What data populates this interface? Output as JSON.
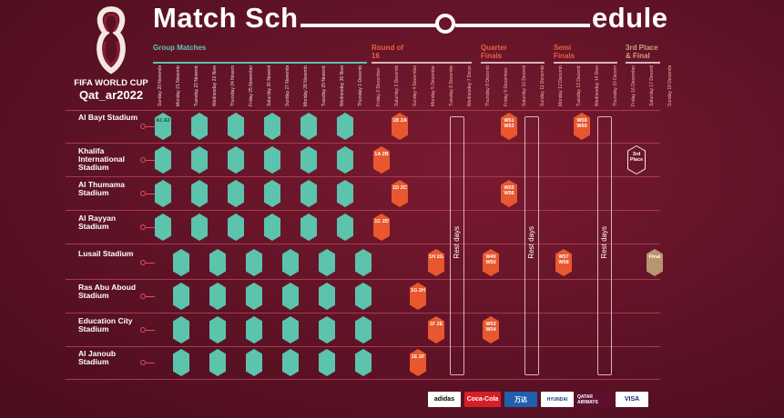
{
  "title": "Match Sch      edule",
  "title_left": "Match Sch",
  "title_right": "edule",
  "logo": {
    "line1": "FIFA WORLD CUP",
    "line2": "Qat_ar2022"
  },
  "phases": [
    {
      "label": "Group Matches",
      "type": "group"
    },
    {
      "label": "Round of 16",
      "type": "ko"
    },
    {
      "label": "Quarter Finals",
      "type": "ko"
    },
    {
      "label": "Semi Finals",
      "type": "ko"
    },
    {
      "label": "3rd Place & Final",
      "type": "final"
    }
  ],
  "dates": [
    "Sunday 20 November",
    "Monday 21 November",
    "Tuesday 22 November",
    "Wednesday 23 November",
    "Thursday 24 November",
    "Friday 25 November",
    "Saturday 26 November",
    "Sunday 27 November",
    "Monday 28 November",
    "Tuesday 29 November",
    "Wednesday 30 November",
    "Thursday 1 December",
    "Friday 2 December",
    "Saturday 3 December",
    "Sunday 4 December",
    "Monday 5 December",
    "Tuesday 6 December",
    "Wednesday 7 December",
    "Thursday 8 December",
    "Friday 9 December",
    "Saturday 10 December",
    "Sunday 11 December",
    "Monday 12 December",
    "Tuesday 13 December",
    "Wednesday 14 December",
    "Thursday 15 December",
    "Friday 16 December",
    "Saturday 17 December",
    "Sunday 18 December"
  ],
  "stadiums": [
    {
      "name": "Al Bayt Stadium"
    },
    {
      "name": "Khalifa International Stadium"
    },
    {
      "name": "Al Thumama Stadium"
    },
    {
      "name": "Al Rayyan Stadium"
    },
    {
      "name": "Lusail Stadium"
    },
    {
      "name": "Ras Abu Aboud Stadium"
    },
    {
      "name": "Education City Stadium"
    },
    {
      "name": "Al Janoub Stadium"
    }
  ],
  "knockout": {
    "r16": [
      "1B 2A",
      "1A 2B",
      "1D 2C",
      "1C 2D",
      "1H 2G",
      "1G 2H",
      "1F 2E",
      "1E 2F"
    ],
    "qf": [
      "W51 W52",
      "W55 W56",
      "W49 W50",
      "W53 W54"
    ],
    "sf": [
      "W59 W60",
      "W57 W58"
    ],
    "third_place": "3rd Place",
    "final": "Final"
  },
  "rest_days_label": "Rest days",
  "group_first_match": "A1 A2",
  "sponsors": [
    "adidas",
    "Coca-Cola",
    "万达",
    "HYUNDAI",
    "QATAR AIRWAYS",
    "VISA"
  ],
  "colors": {
    "background": "#5e1226",
    "group": "#5cc3ad",
    "knockout": "#e8572e",
    "final": "#b89470",
    "line": "#a8394e",
    "dot": "#e84a5f"
  }
}
